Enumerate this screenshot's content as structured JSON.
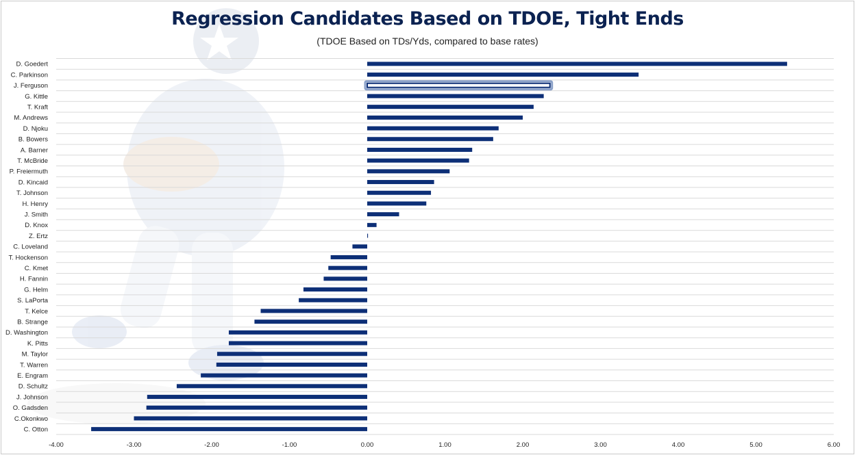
{
  "chart_data": {
    "type": "bar",
    "orientation": "horizontal",
    "title": "Regression Candidates Based on TDOE, Tight Ends",
    "subtitle": "(TDOE Based on TDs/Yds, compared to base rates)",
    "categories": [
      "D. Goedert",
      "C. Parkinson",
      "J. Ferguson",
      "G. Kittle",
      "T. Kraft",
      "M. Andrews",
      "D. Njoku",
      "B. Bowers",
      "A. Barner",
      "T. McBride",
      "P. Freiermuth",
      "D. Kincaid",
      "T. Johnson",
      "H. Henry",
      "J. Smith",
      "D. Knox",
      "Z. Ertz",
      "C. Loveland",
      "T. Hockenson",
      "C. Kmet",
      "H. Fannin",
      "G. Helm",
      "S. LaPorta",
      "T. Kelce",
      "B. Strange",
      "D. Washington",
      "K. Pitts",
      "M. Taylor",
      "T. Warren",
      "E. Engram",
      "D. Schultz",
      "J. Johnson",
      "O. Gadsden",
      "C.Okonkwo",
      "C. Otton"
    ],
    "values": [
      5.4,
      3.49,
      2.35,
      2.27,
      2.14,
      2.0,
      1.69,
      1.62,
      1.35,
      1.31,
      1.06,
      0.86,
      0.82,
      0.76,
      0.41,
      0.12,
      0.01,
      -0.19,
      -0.47,
      -0.5,
      -0.56,
      -0.82,
      -0.88,
      -1.37,
      -1.45,
      -1.78,
      -1.78,
      -1.93,
      -1.94,
      -2.14,
      -2.45,
      -2.83,
      -2.84,
      -3.0,
      -3.55
    ],
    "highlighted_category": "J. Ferguson",
    "xlim": [
      -4,
      6
    ],
    "xticks": [
      "-4.00",
      "-3.00",
      "-2.00",
      "-1.00",
      "0.00",
      "1.00",
      "2.00",
      "3.00",
      "4.00",
      "5.00",
      "6.00"
    ],
    "grid": "horizontal",
    "legend": "none",
    "colors": {
      "bar": "#0d2f77",
      "title": "#0b2251",
      "grid": "#d9d9d9",
      "highlight_glow": "#8aa0c8"
    }
  }
}
